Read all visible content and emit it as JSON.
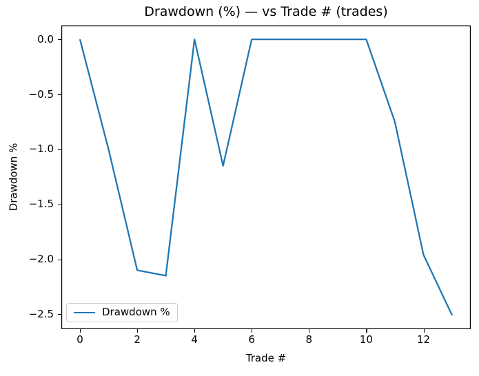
{
  "chart_data": {
    "type": "line",
    "title": "Drawdown (%) — vs Trade # (trades)",
    "xlabel": "Trade #",
    "ylabel": "Drawdown %",
    "x": [
      0,
      1,
      2,
      3,
      4,
      5,
      6,
      7,
      8,
      9,
      10,
      11,
      12,
      13
    ],
    "series": [
      {
        "name": "Drawdown %",
        "values": [
          0.0,
          -1.0,
          -2.1,
          -2.15,
          0.0,
          -1.15,
          0.0,
          0.0,
          0.0,
          0.0,
          0.0,
          -0.75,
          -1.96,
          -2.51
        ],
        "color": "#1f77b4"
      }
    ],
    "xlim": [
      -0.65,
      13.65
    ],
    "ylim": [
      -2.636,
      0.126
    ],
    "xticks": {
      "values": [
        0,
        2,
        4,
        6,
        8,
        10,
        12
      ],
      "labels": [
        "0",
        "2",
        "4",
        "6",
        "8",
        "10",
        "12"
      ]
    },
    "yticks": {
      "values": [
        0.0,
        -0.5,
        -1.0,
        -1.5,
        -2.0,
        -2.5
      ],
      "labels": [
        "0.0",
        "−0.5",
        "−1.0",
        "−1.5",
        "−2.0",
        "−2.5"
      ]
    },
    "legend": {
      "position": "lower-left",
      "entries": [
        "Drawdown %"
      ]
    },
    "grid": false
  },
  "colors": {
    "background": "#ffffff",
    "line": "#1f77b4",
    "spine": "#000000",
    "text": "#000000",
    "legend_border": "#cccccc"
  }
}
